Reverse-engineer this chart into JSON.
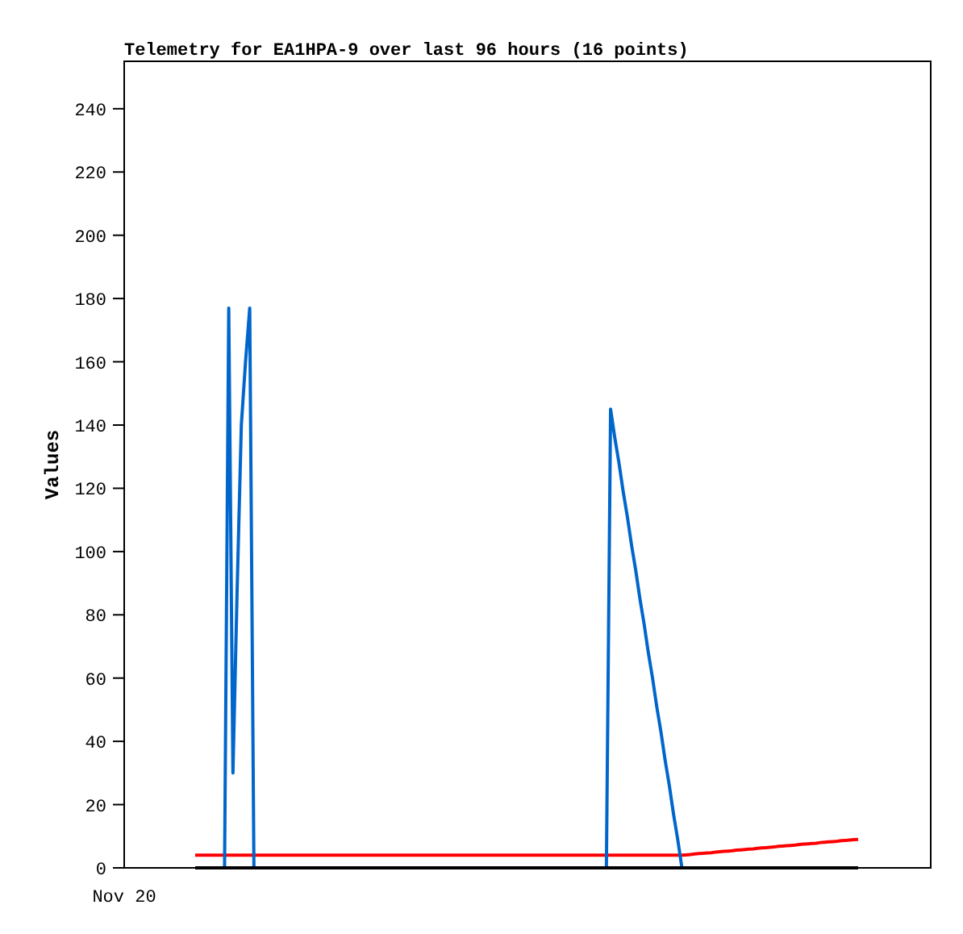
{
  "chart_data": {
    "type": "line",
    "title": "Telemetry for EA1HPA-9 over last 96 hours (16 points)",
    "ylabel": "Values",
    "annotations": [
      "Nov 20"
    ],
    "ylim": [
      0,
      255
    ],
    "yticks": [
      0,
      20,
      40,
      60,
      80,
      100,
      120,
      140,
      160,
      180,
      200,
      220,
      240
    ],
    "grid": false,
    "marker": "none",
    "categories": [
      null,
      null,
      null,
      null,
      null,
      null,
      null,
      null,
      null,
      null,
      null,
      null,
      null,
      null,
      null,
      null,
      null,
      null,
      null,
      null,
      null,
      null,
      null,
      null,
      null,
      null,
      null,
      null,
      null,
      null,
      null,
      null,
      null,
      null,
      null,
      null,
      null,
      null,
      null,
      null,
      null,
      null,
      null,
      null,
      null,
      null,
      null,
      null,
      null,
      null,
      null,
      null,
      null,
      null,
      null,
      null,
      null,
      null,
      null,
      null,
      null,
      null,
      null,
      null,
      null,
      null,
      null,
      null,
      null,
      null,
      null,
      null,
      null,
      null,
      null,
      null,
      null,
      null,
      null,
      null,
      null,
      null,
      null,
      null,
      null,
      null,
      null,
      null,
      null,
      null,
      null,
      null,
      null,
      null,
      null,
      null,
      null,
      null,
      null,
      null,
      null,
      null,
      null,
      null,
      null,
      null,
      null,
      null,
      null,
      null,
      null,
      null,
      null,
      null,
      null,
      null,
      null,
      null,
      null,
      null,
      null,
      null,
      null,
      null,
      null,
      null,
      null,
      null,
      null,
      null,
      null,
      null,
      null,
      null,
      null,
      null,
      null,
      null,
      null,
      null,
      null,
      null,
      null,
      null,
      null,
      null,
      null,
      null,
      null,
      null,
      null,
      null,
      null,
      null,
      null,
      null,
      null,
      null,
      null
    ],
    "series": [
      {
        "color": "#ff0000",
        "values": [
          4,
          4,
          4,
          4,
          4,
          4,
          4,
          4,
          4,
          4,
          4,
          4,
          4,
          4,
          4,
          4,
          4,
          4,
          4,
          4,
          4,
          4,
          4,
          4,
          4,
          4,
          4,
          4,
          4,
          4,
          4,
          4,
          4,
          4,
          4,
          4,
          4,
          4,
          4,
          4,
          4,
          4,
          4,
          4,
          4,
          4,
          4,
          4,
          4,
          4,
          4,
          4,
          4,
          4,
          4,
          4,
          4,
          4,
          4,
          4,
          4,
          4,
          4,
          4,
          4,
          4,
          4,
          4,
          4,
          4,
          4,
          4,
          4,
          4,
          4,
          4,
          4,
          4,
          4,
          4,
          4,
          4,
          4,
          4,
          4,
          4,
          4,
          4,
          4,
          4,
          4,
          4,
          4,
          4,
          4,
          4,
          4,
          4,
          4,
          4,
          4,
          4,
          4,
          4,
          4,
          4,
          4,
          4,
          4,
          4,
          4,
          4,
          4,
          4,
          4,
          4,
          4,
          4.1,
          4.2,
          4.4,
          4.5,
          4.6,
          4.7,
          4.8,
          5.0,
          5.1,
          5.2,
          5.3,
          5.4,
          5.6,
          5.7,
          5.8,
          5.9,
          6.0,
          6.2,
          6.3,
          6.4,
          6.5,
          6.6,
          6.8,
          6.9,
          7.0,
          7.1,
          7.2,
          7.4,
          7.5,
          7.6,
          7.7,
          7.8,
          8.0,
          8.1,
          8.2,
          8.3,
          8.4,
          8.6,
          8.7,
          8.8,
          8.9,
          9.0
        ]
      },
      {
        "color": "#0066cc",
        "values": [
          null,
          null,
          null,
          null,
          null,
          null,
          null,
          0,
          177,
          30,
          88,
          140,
          160,
          177,
          0,
          null,
          null,
          null,
          null,
          null,
          null,
          null,
          null,
          null,
          null,
          null,
          null,
          null,
          null,
          null,
          null,
          null,
          null,
          null,
          null,
          null,
          null,
          null,
          null,
          null,
          null,
          null,
          null,
          null,
          null,
          null,
          null,
          null,
          null,
          null,
          null,
          null,
          null,
          null,
          null,
          null,
          null,
          null,
          null,
          null,
          null,
          null,
          null,
          null,
          null,
          null,
          null,
          null,
          null,
          null,
          null,
          null,
          null,
          null,
          null,
          null,
          null,
          null,
          null,
          null,
          null,
          null,
          null,
          null,
          null,
          null,
          null,
          null,
          null,
          null,
          null,
          null,
          null,
          null,
          null,
          null,
          null,
          null,
          0,
          145,
          136,
          128,
          119,
          111,
          102,
          94,
          85,
          77,
          68,
          60,
          51,
          43,
          34,
          26,
          17,
          9,
          0,
          null,
          null,
          null,
          null,
          null,
          null,
          null,
          null,
          null,
          null,
          null,
          null,
          null,
          null,
          null,
          null,
          null,
          null,
          null,
          null,
          null,
          null,
          null,
          null,
          null,
          null,
          null,
          null,
          null,
          null,
          null,
          null,
          null,
          null,
          null,
          null,
          null,
          null,
          null,
          null,
          null,
          null
        ]
      },
      {
        "color": "#000000",
        "values": [
          0,
          0,
          0,
          0,
          0,
          0,
          0,
          0,
          0,
          0,
          0,
          0,
          0,
          0,
          0,
          0,
          0,
          0,
          0,
          0,
          0,
          0,
          0,
          0,
          0,
          0,
          0,
          0,
          0,
          0,
          0,
          0,
          0,
          0,
          0,
          0,
          0,
          0,
          0,
          0,
          0,
          0,
          0,
          0,
          0,
          0,
          0,
          0,
          0,
          0,
          0,
          0,
          0,
          0,
          0,
          0,
          0,
          0,
          0,
          0,
          0,
          0,
          0,
          0,
          0,
          0,
          0,
          0,
          0,
          0,
          0,
          0,
          0,
          0,
          0,
          0,
          0,
          0,
          0,
          0,
          0,
          0,
          0,
          0,
          0,
          0,
          0,
          0,
          0,
          0,
          0,
          0,
          0,
          0,
          0,
          0,
          0,
          0,
          0,
          0,
          0,
          0,
          0,
          0,
          0,
          0,
          0,
          0,
          0,
          0,
          0,
          0,
          0,
          0,
          0,
          0,
          0,
          0,
          0,
          0,
          0,
          0,
          0,
          0,
          0,
          0,
          0,
          0,
          0,
          0,
          0,
          0,
          0,
          0,
          0,
          0,
          0,
          0,
          0,
          0,
          0,
          0,
          0,
          0,
          0,
          0,
          0,
          0,
          0,
          0,
          0,
          0,
          0,
          0,
          0,
          0,
          0,
          0,
          0
        ]
      }
    ]
  }
}
